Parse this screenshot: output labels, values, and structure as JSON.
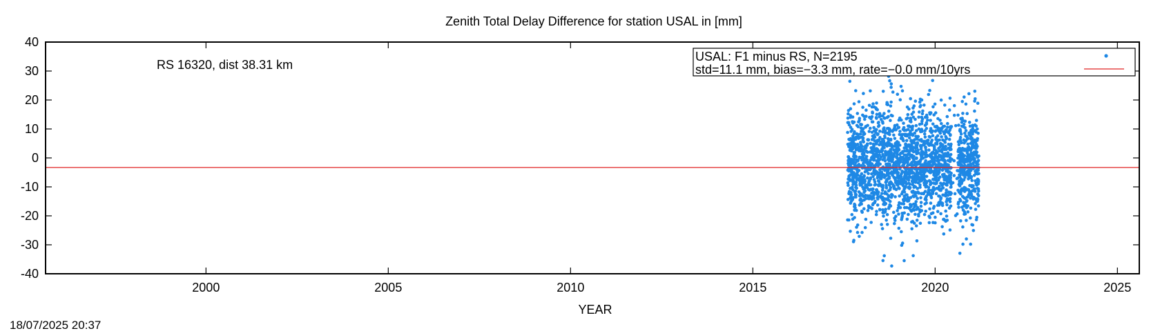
{
  "chart_data": {
    "type": "scatter",
    "title": "Zenith Total Delay Difference for station USAL in [mm]",
    "xlabel": "YEAR",
    "ylabel": "",
    "xlim": [
      1995.6,
      2025.6
    ],
    "ylim": [
      -40,
      40
    ],
    "x_ticks": [
      2000,
      2005,
      2010,
      2015,
      2020,
      2025
    ],
    "y_ticks": [
      -40,
      -30,
      -20,
      -10,
      0,
      10,
      20,
      30,
      40
    ],
    "grid": false,
    "legend_position": "top-right",
    "annotation": "RS 16320, dist 38.31 km",
    "series": [
      {
        "name": "USAL: F1 minus RS, N=2195",
        "style": "points",
        "color": "#1e88e5",
        "n": 2195,
        "x_range": [
          2017.6,
          2021.2
        ],
        "gap_x": [
          2020.45,
          2020.62
        ],
        "center": -2.5,
        "spread": 9.5,
        "y_min": -40,
        "y_max": 40
      },
      {
        "name": "std=11.1 mm, bias=−3.3 mm, rate=−0.0 mm/10yrs",
        "style": "line",
        "color": "#e02020",
        "y": -3.3
      }
    ]
  },
  "footer": {
    "timestamp": "18/07/2025 20:37"
  }
}
